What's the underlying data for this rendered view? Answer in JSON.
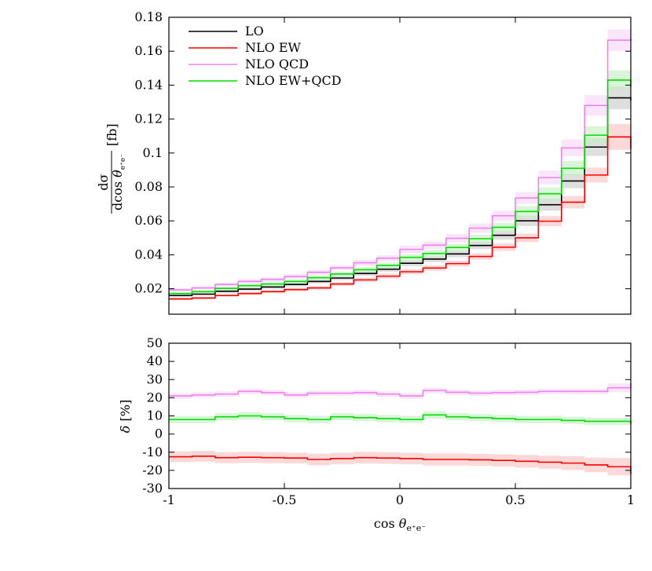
{
  "chart_data": [
    {
      "type": "line",
      "subtype": "histogram-step-with-uncertainty-bands",
      "panel": "main",
      "title": "",
      "xlabel": "",
      "ylabel": "dσ/dcos θ_{e⁺e⁻} [fb]",
      "ylabel_parts": {
        "num": "dσ",
        "den_prefix": "dcos ",
        "theta": "θ",
        "sub": "e⁺e⁻",
        "unit": "[fb]"
      },
      "xlim": [
        -1,
        1
      ],
      "ylim": [
        0.005,
        0.18
      ],
      "yticks": [
        0.02,
        0.04,
        0.06,
        0.08,
        0.1,
        0.12,
        0.14,
        0.16,
        0.18
      ],
      "ytick_labels": [
        "0.02",
        "0.04",
        "0.06",
        "0.08",
        "0.1",
        "0.12",
        "0.14",
        "0.16",
        "0.18"
      ],
      "xticks": [
        -1,
        -0.5,
        0,
        0.5,
        1
      ],
      "legend_position": "top-left",
      "bin_edges": [
        -1,
        -0.9,
        -0.8,
        -0.7,
        -0.6,
        -0.5,
        -0.4,
        -0.3,
        -0.2,
        -0.1,
        0,
        0.1,
        0.2,
        0.3,
        0.4,
        0.5,
        0.6,
        0.7,
        0.8,
        0.9,
        1
      ],
      "series": [
        {
          "name": "LO",
          "color": "#000000",
          "band_color": "#c8c8c8",
          "values": [
            0.016,
            0.0168,
            0.0185,
            0.0198,
            0.021,
            0.0225,
            0.0243,
            0.0263,
            0.029,
            0.0315,
            0.035,
            0.0375,
            0.0405,
            0.0455,
            0.0515,
            0.06,
            0.0695,
            0.0835,
            0.1035,
            0.1325,
            0.131
          ],
          "band_half_width": [
            0.0008,
            0.0008,
            0.0009,
            0.001,
            0.001,
            0.0011,
            0.0012,
            0.0013,
            0.0014,
            0.0015,
            0.0017,
            0.0018,
            0.002,
            0.0022,
            0.0025,
            0.003,
            0.0035,
            0.0042,
            0.0052,
            0.0066,
            0.0106
          ]
        },
        {
          "name": "NLO EW",
          "color": "#ff0000",
          "band_color": "#f9c0c0",
          "values": [
            0.014,
            0.0145,
            0.016,
            0.0172,
            0.0183,
            0.0195,
            0.0205,
            0.0228,
            0.0252,
            0.0274,
            0.03,
            0.0322,
            0.0348,
            0.039,
            0.0445,
            0.05,
            0.0598,
            0.071,
            0.087,
            0.1095,
            0.1025
          ],
          "band_half_width": [
            0.0007,
            0.0007,
            0.0008,
            0.0009,
            0.0009,
            0.001,
            0.001,
            0.0011,
            0.0013,
            0.0014,
            0.0015,
            0.0016,
            0.0017,
            0.0019,
            0.0022,
            0.0025,
            0.003,
            0.0036,
            0.0044,
            0.0076,
            0.0095
          ]
        },
        {
          "name": "NLO QCD",
          "color": "#ee82ee",
          "band_color": "#f8d4f8",
          "values": [
            0.0193,
            0.0205,
            0.0225,
            0.0243,
            0.0255,
            0.0272,
            0.0297,
            0.0323,
            0.0353,
            0.038,
            0.0432,
            0.0457,
            0.0497,
            0.0557,
            0.063,
            0.0735,
            0.0855,
            0.103,
            0.128,
            0.1665,
            0.1675
          ],
          "band_half_width": [
            0.001,
            0.001,
            0.0011,
            0.0012,
            0.0012,
            0.0013,
            0.0014,
            0.0015,
            0.0017,
            0.0018,
            0.0021,
            0.0022,
            0.0024,
            0.0027,
            0.003,
            0.0035,
            0.0041,
            0.0049,
            0.0061,
            0.0063,
            0.0055
          ]
        },
        {
          "name": "NLO EW+QCD",
          "color": "#00dd00",
          "band_color": "#bff0bf",
          "values": [
            0.0172,
            0.0183,
            0.0202,
            0.0218,
            0.0228,
            0.0243,
            0.0265,
            0.0287,
            0.0312,
            0.0338,
            0.0385,
            0.0408,
            0.0443,
            0.0495,
            0.0562,
            0.0655,
            0.076,
            0.091,
            0.1105,
            0.143,
            0.139
          ],
          "band_half_width": [
            0.0008,
            0.0009,
            0.001,
            0.0011,
            0.0011,
            0.0012,
            0.0013,
            0.0014,
            0.0015,
            0.0016,
            0.0019,
            0.002,
            0.0022,
            0.0024,
            0.0027,
            0.0032,
            0.0037,
            0.0044,
            0.0053,
            0.0057,
            0.0051
          ]
        }
      ]
    },
    {
      "type": "line",
      "subtype": "histogram-step-with-uncertainty-bands",
      "panel": "ratio",
      "title": "",
      "xlabel": "cos θ_{e⁺e⁻}",
      "xlabel_parts": {
        "prefix": "cos ",
        "theta": "θ",
        "sub": "e⁺e⁻"
      },
      "ylabel": "δ [%]",
      "ylabel_parts": {
        "delta": "δ",
        "unit": " [%]"
      },
      "xlim": [
        -1,
        1
      ],
      "ylim": [
        -30,
        50
      ],
      "yticks": [
        -30,
        -20,
        -10,
        0,
        10,
        20,
        30,
        40,
        50
      ],
      "ytick_labels": [
        "-30",
        "-20",
        "-10",
        "0",
        "10",
        "20",
        "30",
        "40",
        "50"
      ],
      "xticks": [
        -1,
        -0.5,
        0,
        0.5,
        1
      ],
      "xtick_labels": [
        "-1",
        "-0.5",
        "0",
        "0.5",
        "1"
      ],
      "bin_edges": [
        -1,
        -0.9,
        -0.8,
        -0.7,
        -0.6,
        -0.5,
        -0.4,
        -0.3,
        -0.2,
        -0.1,
        0,
        0.1,
        0.2,
        0.3,
        0.4,
        0.5,
        0.6,
        0.7,
        0.8,
        0.9,
        1
      ],
      "series": [
        {
          "name": "NLO EW",
          "color": "#ff0000",
          "band_color": "#f9c0c0",
          "values": [
            -12.5,
            -12.2,
            -13,
            -12.8,
            -13,
            -13.2,
            -14,
            -13.5,
            -13,
            -13.2,
            -13.5,
            -14,
            -14,
            -14.2,
            -14.5,
            -15,
            -15.5,
            -16,
            -17,
            -18,
            -22
          ],
          "band_half_width": [
            3,
            3,
            3,
            3,
            3,
            3,
            3.2,
            3.2,
            3.2,
            3.2,
            3.2,
            3.3,
            3.3,
            3.3,
            3.4,
            3.5,
            3.6,
            3.8,
            4,
            4.8,
            5.5
          ]
        },
        {
          "name": "NLO QCD",
          "color": "#ee82ee",
          "band_color": "#f8d4f8",
          "values": [
            21,
            21.5,
            22,
            23.5,
            22.8,
            21.5,
            22.5,
            22.5,
            22.8,
            22,
            21,
            24,
            23,
            22.5,
            22.8,
            23,
            23.5,
            23.5,
            23.5,
            25.5,
            28
          ],
          "band_half_width": [
            1.5,
            1.5,
            1.5,
            1.5,
            1.5,
            1.5,
            1.5,
            1.5,
            1.5,
            1.5,
            1.5,
            1.5,
            1.5,
            1.5,
            1.5,
            1.5,
            1.5,
            1.5,
            1.5,
            2.5,
            3
          ]
        },
        {
          "name": "NLO EW+QCD",
          "color": "#00dd00",
          "band_color": "#bff0bf",
          "values": [
            8,
            8,
            9.5,
            10,
            9.5,
            8.5,
            8,
            9.5,
            9,
            8.5,
            8,
            10.5,
            9.5,
            9,
            8.5,
            8,
            8,
            7.5,
            7,
            7,
            5.5
          ],
          "band_half_width": [
            2,
            2,
            2,
            2,
            2,
            2,
            2,
            2,
            2,
            2,
            2,
            2,
            2,
            2,
            2,
            2,
            2,
            2,
            2,
            2,
            2.5
          ]
        }
      ]
    }
  ]
}
